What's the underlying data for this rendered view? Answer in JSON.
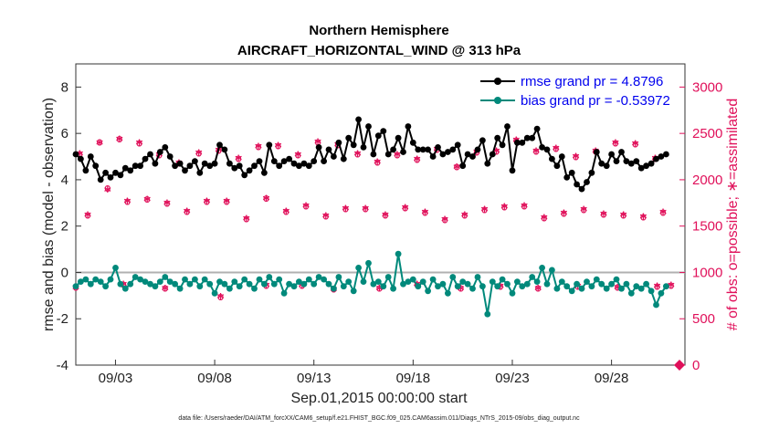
{
  "chart_data": {
    "type": "line",
    "title": "Northern Hemisphere",
    "subtitle": "AIRCRAFT_HORIZONTAL_WIND @ 313 hPa",
    "xlabel": "Sep.01,2015 00:00:00 start",
    "ylabel_left": "rmse and bias (model - observation)",
    "ylabel_right": "# of obs: o=possible; ∗=assimilated",
    "xlim": [
      1,
      31
    ],
    "ylim_left": [
      -4,
      9
    ],
    "ylim_right": [
      0,
      3250
    ],
    "x_ticks": [
      3,
      8,
      13,
      18,
      23,
      28
    ],
    "x_tick_labels": [
      "09/03",
      "09/08",
      "09/13",
      "09/18",
      "09/23",
      "09/28"
    ],
    "y_left_ticks": [
      "-4",
      "-2",
      "0",
      "2",
      "4",
      "6",
      "8"
    ],
    "y_right_ticks": [
      "0",
      "500",
      "1000",
      "1500",
      "2000",
      "2500",
      "3000"
    ],
    "legend_location": "top-right",
    "zero_line": true,
    "x": [
      1,
      1.25,
      1.5,
      1.75,
      2,
      2.25,
      2.5,
      2.75,
      3,
      3.25,
      3.5,
      3.75,
      4,
      4.25,
      4.5,
      4.75,
      5,
      5.25,
      5.5,
      5.75,
      6,
      6.25,
      6.5,
      6.75,
      7,
      7.25,
      7.5,
      7.75,
      8,
      8.25,
      8.5,
      8.75,
      9,
      9.25,
      9.5,
      9.75,
      10,
      10.25,
      10.5,
      10.75,
      11,
      11.25,
      11.5,
      11.75,
      12,
      12.25,
      12.5,
      12.75,
      13,
      13.25,
      13.5,
      13.75,
      14,
      14.25,
      14.5,
      14.75,
      15,
      15.25,
      15.5,
      15.75,
      16,
      16.25,
      16.5,
      16.75,
      17,
      17.25,
      17.5,
      17.75,
      18,
      18.25,
      18.5,
      18.75,
      19,
      19.25,
      19.5,
      19.75,
      20,
      20.25,
      20.5,
      20.75,
      21,
      21.25,
      21.5,
      21.75,
      22,
      22.25,
      22.5,
      22.75,
      23,
      23.25,
      23.5,
      23.75,
      24,
      24.25,
      24.5,
      24.75,
      25,
      25.25,
      25.5,
      25.75,
      26,
      26.25,
      26.5,
      26.75,
      27,
      27.25,
      27.5,
      27.75,
      28,
      28.25,
      28.5,
      28.75,
      29,
      29.25,
      29.5,
      29.75,
      30,
      30.25,
      30.5,
      30.75
    ],
    "series": [
      {
        "name": "rmse",
        "legend_label": "rmse grand pr = 4.8796",
        "color": "#000000",
        "values": [
          5.1,
          4.9,
          4.4,
          5.0,
          4.6,
          4.0,
          4.3,
          4.1,
          4.3,
          4.2,
          4.5,
          4.4,
          4.6,
          4.6,
          4.9,
          5.1,
          4.7,
          5.2,
          5.4,
          5.0,
          4.6,
          4.7,
          4.4,
          4.6,
          4.8,
          4.3,
          4.7,
          4.6,
          4.7,
          5.5,
          5.3,
          4.7,
          4.5,
          4.6,
          4.2,
          4.4,
          4.6,
          4.8,
          4.3,
          5.5,
          4.8,
          4.6,
          4.8,
          4.9,
          4.7,
          4.6,
          4.7,
          4.6,
          4.8,
          5.4,
          4.8,
          5.3,
          5.0,
          5.6,
          4.9,
          5.8,
          5.5,
          6.6,
          5.4,
          6.3,
          5.1,
          5.9,
          6.1,
          5.1,
          5.3,
          5.8,
          5.2,
          6.3,
          5.6,
          5.3,
          5.3,
          5.3,
          5.0,
          5.4,
          5.1,
          5.2,
          5.3,
          5.5,
          4.6,
          5.1,
          5.0,
          5.3,
          5.7,
          4.7,
          5.1,
          5.8,
          5.5,
          6.3,
          4.4,
          5.6,
          5.6,
          5.8,
          5.8,
          6.2,
          5.4,
          5.3,
          4.9,
          4.6,
          5.0,
          4.1,
          4.3,
          3.8,
          3.6,
          3.9,
          4.3,
          5.2,
          4.7,
          4.6,
          5.1,
          4.8,
          5.2,
          4.8,
          4.7,
          4.8,
          4.5,
          4.6,
          4.7,
          4.9,
          5.0,
          5.1
        ]
      },
      {
        "name": "bias",
        "legend_label": "bias grand pr = -0.53972",
        "color": "#00897b",
        "values": [
          -0.6,
          -0.4,
          -0.3,
          -0.5,
          -0.3,
          -0.4,
          -0.6,
          -0.3,
          0.2,
          -0.5,
          -0.7,
          -0.5,
          -0.2,
          -0.3,
          -0.4,
          -0.5,
          -0.6,
          -0.4,
          -0.2,
          -0.4,
          -0.5,
          -0.7,
          -0.3,
          -0.5,
          -0.3,
          -0.6,
          -0.3,
          -0.5,
          -0.9,
          -0.4,
          -0.5,
          -0.7,
          -0.4,
          -0.6,
          -0.3,
          -0.5,
          -0.7,
          -0.3,
          -0.5,
          -0.2,
          -0.5,
          -0.3,
          -0.9,
          -0.5,
          -0.6,
          -0.4,
          -0.5,
          -0.3,
          -0.5,
          -0.2,
          -0.3,
          -0.5,
          -0.7,
          -0.2,
          -0.6,
          -0.4,
          -0.8,
          0.2,
          -0.4,
          0.4,
          -0.5,
          -0.4,
          -0.6,
          -0.2,
          -0.7,
          0.8,
          -0.5,
          -0.4,
          -0.3,
          -0.6,
          -0.4,
          -0.8,
          -0.3,
          -0.6,
          -0.5,
          -0.9,
          -0.2,
          -0.6,
          -0.4,
          -0.5,
          -0.7,
          -0.2,
          -0.6,
          -1.8,
          -0.4,
          -0.6,
          -0.3,
          -0.5,
          -0.9,
          -0.4,
          -0.6,
          -0.5,
          -0.2,
          -0.4,
          0.2,
          -0.5,
          0.1,
          -0.7,
          -0.4,
          -0.6,
          -0.8,
          -0.5,
          -0.7,
          -0.4,
          -0.6,
          -0.3,
          -0.5,
          -0.7,
          -0.5,
          -0.3,
          -0.7,
          -0.5,
          -0.9,
          -0.6,
          -0.7,
          -0.5,
          -0.8,
          -1.4,
          -0.9,
          -0.6
        ]
      }
    ],
    "obs_possible_x": [
      1.2,
      1.6,
      2.2,
      2.6,
      3.2,
      3.6,
      4.2,
      4.6,
      5.2,
      5.6,
      6.2,
      6.6,
      7.2,
      7.6,
      8.2,
      8.6,
      9.2,
      9.6,
      10.2,
      10.6,
      11.2,
      11.6,
      12.2,
      12.6,
      13.2,
      13.6,
      14.2,
      14.6,
      15.2,
      15.6,
      16.2,
      16.6,
      17.2,
      17.6,
      18.2,
      18.6,
      19.2,
      19.6,
      20.2,
      20.6,
      21.2,
      21.6,
      22.2,
      22.6,
      23.2,
      23.6,
      24.2,
      24.6,
      25.2,
      25.6,
      26.2,
      26.6,
      27.2,
      27.6,
      28.2,
      28.6,
      29.2,
      29.6,
      30.2,
      30.6
    ],
    "obs_possible": [
      2280,
      1620,
      2410,
      1910,
      2440,
      1770,
      2400,
      1790,
      2270,
      1750,
      2180,
      1660,
      2290,
      1770,
      2320,
      1770,
      2230,
      1580,
      2360,
      1800,
      2370,
      1660,
      2270,
      1720,
      2410,
      1610,
      2380,
      1690,
      2280,
      1690,
      2190,
      1620,
      2270,
      1700,
      2220,
      1650,
      2330,
      1570,
      2140,
      1620,
      2300,
      1680,
      2310,
      1710,
      2430,
      1720,
      2310,
      1590,
      2340,
      1640,
      2250,
      1680,
      2310,
      1630,
      2400,
      1620,
      2390,
      1600,
      2230,
      1650
    ],
    "obs_assimilated": [
      2250,
      1590,
      2370,
      1860,
      2410,
      1740,
      2370,
      1760,
      2240,
      1720,
      2150,
      1630,
      2260,
      1740,
      2290,
      1740,
      2200,
      1550,
      2330,
      1770,
      2340,
      1630,
      2240,
      1690,
      2380,
      1580,
      2350,
      1660,
      2250,
      1660,
      2160,
      1590,
      2240,
      1670,
      2190,
      1620,
      2300,
      1540,
      2110,
      1590,
      2270,
      1650,
      2280,
      1680,
      2400,
      1690,
      2280,
      1560,
      2310,
      1610,
      2220,
      1650,
      2280,
      1600,
      2370,
      1590,
      2360,
      1570,
      2200,
      1620
    ],
    "obs_low_x": [
      1.0,
      3.4,
      5.5,
      8.3,
      10.6,
      12.4,
      14.0,
      16.3,
      18.2,
      20.4,
      22.4,
      24.3,
      26.3,
      28.3,
      30.3,
      31.0
    ],
    "obs_low_possible": [
      840,
      870,
      830,
      740,
      860,
      860,
      820,
      830,
      870,
      830,
      850,
      830,
      850,
      840,
      850,
      860
    ],
    "obs_low_assimilated": [
      810,
      840,
      800,
      710,
      830,
      830,
      790,
      800,
      840,
      800,
      820,
      800,
      820,
      810,
      820,
      830
    ],
    "footnote": "data file: /Users/raeder/DAI/ATM_forcXX/CAM6_setup/f.e21.FHIST_BGC.f09_025.CAM6assim.011/Diags_NTrS_2015-09/obs_diag_output.nc"
  }
}
